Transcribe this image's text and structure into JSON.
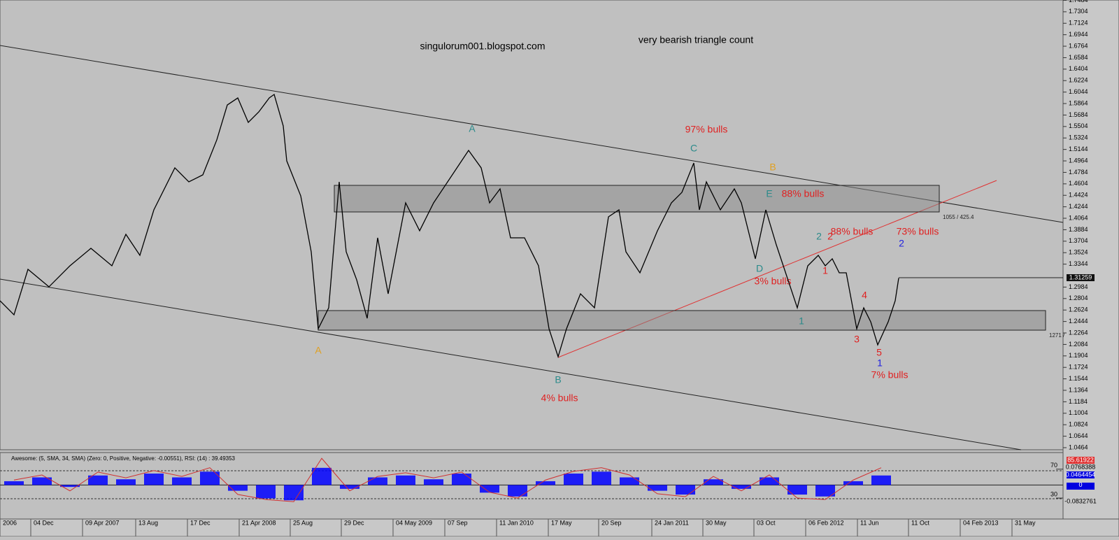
{
  "chart_data": [
    {
      "type": "line",
      "title": "very bearish triangle count",
      "subtitle": "singulorum001.blogspot.com",
      "color": "#000000",
      "x": [
        0,
        20,
        40,
        70,
        100,
        130,
        160,
        180,
        200,
        220,
        250,
        270,
        290,
        310,
        325,
        340,
        355,
        370,
        385,
        392,
        405,
        410,
        430,
        445,
        455,
        470,
        485,
        495,
        510,
        525,
        540,
        555,
        580,
        600,
        620,
        640,
        660,
        670,
        688,
        700,
        715,
        730,
        750,
        770,
        785,
        798,
        810,
        830,
        850,
        870,
        885,
        895,
        915,
        940,
        960,
        975,
        992,
        1000,
        1010,
        1030,
        1050,
        1060,
        1080,
        1095,
        1110,
        1140,
        1155,
        1170,
        1180,
        1190,
        1200,
        1210,
        1225,
        1235,
        1245,
        1255,
        1270,
        1280,
        1285
      ],
      "values": [
        1.2769,
        1.2549,
        1.3263,
        1.2988,
        1.3318,
        1.3592,
        1.3318,
        1.3812,
        1.3482,
        1.4196,
        1.4855,
        1.4635,
        1.4745,
        1.5294,
        1.5842,
        1.5952,
        1.5568,
        1.5733,
        1.5952,
        1.6007,
        1.5513,
        1.4964,
        1.4415,
        1.3537,
        1.233,
        1.2659,
        1.4635,
        1.3537,
        1.3098,
        1.2494,
        1.3757,
        1.2879,
        1.4306,
        1.3867,
        1.4306,
        1.4635,
        1.4964,
        1.5129,
        1.4855,
        1.4306,
        1.4525,
        1.3757,
        1.3757,
        1.3318,
        1.233,
        1.1891,
        1.233,
        1.2879,
        1.2659,
        1.4086,
        1.4196,
        1.3537,
        1.3208,
        1.3867,
        1.4306,
        1.447,
        1.4931,
        1.4196,
        1.4635,
        1.4196,
        1.4525,
        1.4306,
        1.3428,
        1.4196,
        1.3647,
        1.2659,
        1.3318,
        1.3482,
        1.3318,
        1.3428,
        1.3208,
        1.3208,
        1.233,
        1.2659,
        1.2439,
        1.2077,
        1.2439,
        1.2769,
        1.3126
      ],
      "last_value": 1.31259,
      "xlim": [
        0,
        1520
      ],
      "ylim": [
        1.0431,
        1.7489
      ],
      "yticks": [
        1.0464,
        1.0644,
        1.0824,
        1.1004,
        1.1184,
        1.1364,
        1.1544,
        1.1724,
        1.1904,
        1.2084,
        1.2264,
        1.2444,
        1.2624,
        1.2804,
        1.2984,
        1.3344,
        1.3524,
        1.3704,
        1.3884,
        1.4064,
        1.4244,
        1.4424,
        1.4604,
        1.4784,
        1.4964,
        1.5144,
        1.5324,
        1.5504,
        1.5684,
        1.5864,
        1.6044,
        1.6224,
        1.6404,
        1.6584,
        1.6764,
        1.6944,
        1.7124,
        1.7304,
        1.7484
      ],
      "xticks": [
        {
          "value": 0,
          "label": "2006"
        },
        {
          "value": 44,
          "label": "04 Dec"
        },
        {
          "value": 118,
          "label": "09 Apr 2007"
        },
        {
          "value": 194,
          "label": "13 Aug"
        },
        {
          "value": 268,
          "label": "17 Dec"
        },
        {
          "value": 342,
          "label": "21 Apr 2008"
        },
        {
          "value": 415,
          "label": "25 Aug"
        },
        {
          "value": 488,
          "label": "29 Dec"
        },
        {
          "value": 562,
          "label": "04 May 2009"
        },
        {
          "value": 636,
          "label": "07 Sep"
        },
        {
          "value": 710,
          "label": "11 Jan 2010"
        },
        {
          "value": 784,
          "label": "17 May"
        },
        {
          "value": 856,
          "label": "20 Sep"
        },
        {
          "value": 932,
          "label": "24 Jan 2011"
        },
        {
          "value": 1005,
          "label": "30 May"
        },
        {
          "value": 1078,
          "label": "03 Oct"
        },
        {
          "value": 1152,
          "label": "06 Feb 2012"
        },
        {
          "value": 1226,
          "label": "11 Jun"
        },
        {
          "value": 1299,
          "label": "11 Oct"
        },
        {
          "value": 1373,
          "label": "04 Feb 2013"
        },
        {
          "value": 1447,
          "label": "31 May"
        }
      ],
      "annotations": [
        {
          "text": "A",
          "color": "#2a8a8a"
        },
        {
          "text": "97% bulls",
          "color": "#e02020"
        },
        {
          "text": "C",
          "color": "#2a8a8a"
        },
        {
          "text": "B",
          "color": "#e0a020"
        },
        {
          "text": "E",
          "color": "#2a8a8a"
        },
        {
          "text": "88% bulls",
          "color": "#e02020"
        },
        {
          "text": "2",
          "color": "#2a8a8a"
        },
        {
          "text": "88% bulls",
          "color": "#e02020"
        },
        {
          "text": "2",
          "color": "#e02020"
        },
        {
          "text": "73% bulls",
          "color": "#e02020"
        },
        {
          "text": "2",
          "color": "#2020e0"
        },
        {
          "text": "1",
          "color": "#e02020"
        },
        {
          "text": "4",
          "color": "#e02020"
        },
        {
          "text": "D",
          "color": "#2a8a8a"
        },
        {
          "text": "3% bulls",
          "color": "#e02020"
        },
        {
          "text": "1",
          "color": "#2a8a8a"
        },
        {
          "text": "3",
          "color": "#e02020"
        },
        {
          "text": "5",
          "color": "#e02020"
        },
        {
          "text": "1",
          "color": "#2020e0"
        },
        {
          "text": "7% bulls",
          "color": "#e02020"
        },
        {
          "text": "A",
          "color": "#e0a020"
        },
        {
          "text": "B",
          "color": "#2a8a8a"
        },
        {
          "text": "4% bulls",
          "color": "#e02020"
        },
        {
          "text": "1055 / 425.4",
          "color": "#222222"
        },
        {
          "text": "1271 /",
          "color": "#222222"
        }
      ]
    },
    {
      "type": "bar",
      "title": "Awesome: (5, SMA, 34, SMA) (Zero: 0, Positive, Negative: -0.00551), RSI: (14) : 39.49353",
      "x": [
        20,
        60,
        100,
        140,
        180,
        220,
        260,
        300,
        340,
        380,
        420,
        460,
        500,
        540,
        580,
        620,
        660,
        700,
        740,
        780,
        820,
        860,
        900,
        940,
        980,
        1020,
        1060,
        1100,
        1140,
        1180,
        1220,
        1260
      ],
      "series": [
        {
          "color": "#0000ff",
          "values": [
            0.02,
            0.04,
            -0.01,
            0.05,
            0.03,
            0.06,
            0.04,
            0.07,
            -0.03,
            -0.07,
            -0.08,
            0.09,
            -0.02,
            0.04,
            0.05,
            0.03,
            0.06,
            -0.04,
            -0.06,
            0.02,
            0.06,
            0.07,
            0.04,
            -0.03,
            -0.05,
            0.03,
            -0.02,
            0.04,
            -0.05,
            -0.06,
            0.02,
            0.05
          ]
        },
        {
          "color": "#d03030",
          "axis": "y2",
          "values": [
            55,
            62,
            40,
            66,
            58,
            68,
            60,
            72,
            35,
            28,
            25,
            85,
            40,
            60,
            65,
            58,
            66,
            38,
            30,
            55,
            67,
            72,
            62,
            36,
            32,
            60,
            40,
            62,
            30,
            28,
            55,
            72
          ]
        }
      ],
      "readouts": [
        85.61922,
        0.0768388,
        0.0464454,
        -0.0832761
      ],
      "xlim": [
        0,
        1520
      ],
      "ylim": [
        -0.178,
        0.17
      ],
      "yticks": [
        0
      ],
      "y2lim": [
        1,
        93
      ],
      "y2ticks": [
        30,
        70
      ]
    }
  ]
}
